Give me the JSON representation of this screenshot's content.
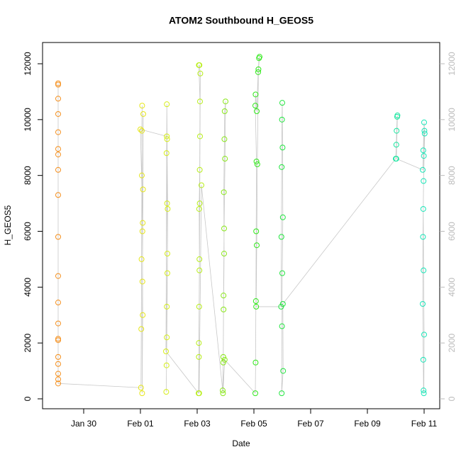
{
  "chart_data": {
    "type": "scatter",
    "title": "ATOM2 Southbound H_GEOS5",
    "xlabel": "Date",
    "ylabel": "H_GEOS5",
    "xlim": [
      28.55,
      42.55
    ],
    "xticks": [
      {
        "value": 30,
        "label": "Jan 30"
      },
      {
        "value": 32,
        "label": "Feb 01"
      },
      {
        "value": 34,
        "label": "Feb 03"
      },
      {
        "value": 36,
        "label": "Feb 05"
      },
      {
        "value": 38,
        "label": "Feb 07"
      },
      {
        "value": 40,
        "label": "Feb 09"
      },
      {
        "value": 42,
        "label": "Feb 11"
      }
    ],
    "ylim": [
      -355,
      12761
    ],
    "yticks": [
      0,
      2000,
      4000,
      6000,
      8000,
      10000,
      12000
    ],
    "y2lim": [
      -355,
      12761
    ],
    "y2ticks": [
      0,
      2000,
      4000,
      6000,
      8000,
      10000,
      12000
    ],
    "line_color": "#c8c8c8",
    "y2_color": "#bbbbbb",
    "series": [
      {
        "color": "#f5901e",
        "x": [
          29.1,
          29.1,
          29.1,
          29.1,
          29.1,
          29.1,
          29.1,
          29.1,
          29.1,
          29.1,
          29.1,
          29.1,
          29.1,
          29.1,
          29.1,
          29.1,
          29.1,
          29.1,
          29.1,
          29.1
        ],
        "values": [
          11250,
          11300,
          10750,
          10200,
          9550,
          8950,
          8750,
          8200,
          7300,
          5800,
          4400,
          3450,
          2700,
          2150,
          2100,
          1500,
          1250,
          900,
          700,
          550
        ]
      },
      {
        "color": "#e6e61a",
        "x": [
          32.02,
          32.03,
          32.04,
          32.05,
          32.06,
          32.05,
          32.07,
          32.08,
          32.06,
          32.07,
          32.09,
          32.1,
          32.08,
          32.0
        ],
        "values": [
          400,
          2500,
          5000,
          8000,
          10500,
          9600,
          6000,
          3000,
          200,
          4200,
          7500,
          10200,
          6300,
          9650
        ]
      },
      {
        "color": "#d6ee1a",
        "x": [
          32.93,
          32.92,
          32.94,
          32.95,
          32.93,
          32.92,
          32.91,
          32.93,
          32.95,
          32.96,
          32.94,
          32.93,
          32.9
        ],
        "values": [
          9400,
          8800,
          7000,
          5200,
          3300,
          1200,
          250,
          2200,
          4500,
          6800,
          9300,
          10550,
          1700
        ]
      },
      {
        "color": "#b8ee1a",
        "x": [
          34.05,
          34.06,
          34.07,
          34.08,
          34.07,
          34.09,
          34.1,
          34.06,
          34.08,
          34.11,
          34.1,
          34.09,
          34.08,
          34.06,
          34.07,
          34.15
        ],
        "values": [
          200,
          1500,
          3300,
          5000,
          6800,
          8200,
          10650,
          11950,
          11950,
          11650,
          9400,
          7000,
          4600,
          2000,
          200,
          7650
        ]
      },
      {
        "color": "#8ae81a",
        "x": [
          34.9,
          34.92,
          34.93,
          34.95,
          34.94,
          34.96,
          34.97,
          35.0,
          34.98,
          34.95,
          34.93,
          34.92,
          34.91,
          34.97
        ],
        "values": [
          300,
          1300,
          3200,
          5200,
          7400,
          9300,
          10300,
          10650,
          8600,
          6100,
          3700,
          1500,
          200,
          1400
        ]
      },
      {
        "color": "#30e81a",
        "x": [
          36.05,
          36.06,
          36.07,
          36.08,
          36.09,
          36.05,
          36.06,
          36.1,
          36.15,
          36.18,
          36.2,
          36.16,
          36.12,
          36.1,
          36.08
        ],
        "values": [
          200,
          1300,
          3500,
          6000,
          8500,
          10500,
          10900,
          10300,
          11700,
          12200,
          12250,
          11800,
          8400,
          5500,
          3300
        ]
      },
      {
        "color": "#22e640",
        "x": [
          36.96,
          36.97,
          36.98,
          36.99,
          37.0,
          37.01,
          37.02,
          37.0,
          36.99,
          36.98,
          37.03,
          37.02
        ],
        "values": [
          3300,
          5800,
          8300,
          10000,
          10600,
          9000,
          6500,
          4500,
          2600,
          200,
          1000,
          3400
        ]
      },
      {
        "color": "#1ae6a0",
        "x": [
          41.0,
          41.02,
          41.03,
          41.05,
          41.06,
          41.02
        ],
        "values": [
          8600,
          9100,
          9600,
          10100,
          10150,
          8600
        ]
      },
      {
        "color": "#1ae6b8",
        "x": [
          41.95,
          41.97,
          42.0,
          42.02,
          41.98,
          41.96,
          41.95,
          41.97,
          41.98,
          41.99,
          42.0,
          41.98,
          41.97,
          41.99,
          42.01
        ],
        "values": [
          8200,
          8900,
          9900,
          9500,
          7800,
          5800,
          3400,
          1400,
          300,
          200,
          2300,
          4600,
          6800,
          8700,
          9600
        ]
      }
    ]
  }
}
